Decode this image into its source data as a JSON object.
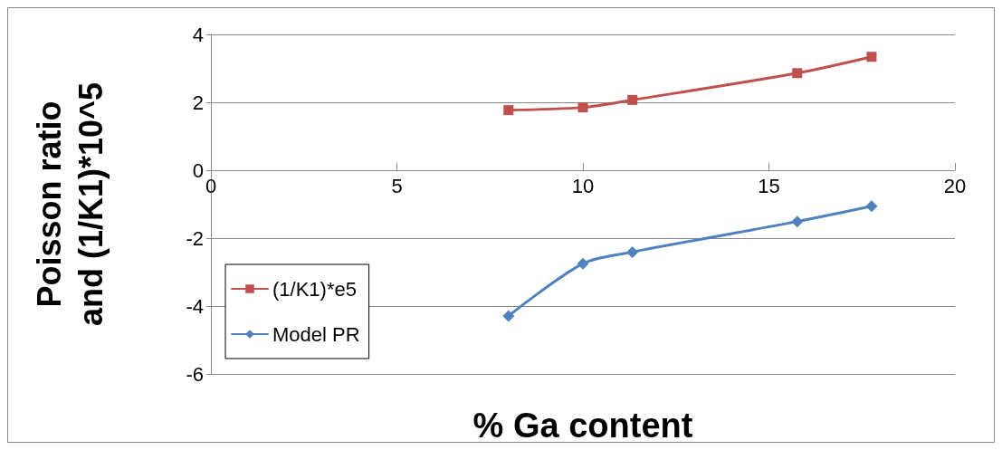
{
  "chart_data": {
    "type": "line",
    "xlabel": "% Ga content",
    "ylabel": "Poisson ratio\nand (1/K1)*10^5",
    "xlim": [
      0,
      20
    ],
    "xticks": [
      0,
      5,
      10,
      15,
      20
    ],
    "ylim": [
      -6,
      4
    ],
    "yticks": [
      -6,
      -4,
      -2,
      0,
      2,
      4
    ],
    "grid": "y",
    "legend": "bottom left",
    "line_style": "solid",
    "series": [
      {
        "name": "(1/K1)*e5",
        "color": "#c0504d",
        "marker": "square",
        "x": [
          8,
          10,
          11.33,
          15.76,
          17.76
        ],
        "values": [
          1.77,
          1.85,
          2.07,
          2.86,
          3.34
        ]
      },
      {
        "name": "Model PR",
        "color": "#4f81bd",
        "marker": "diamond",
        "x": [
          8,
          10,
          11.33,
          15.76,
          17.76
        ],
        "values": [
          -4.29,
          -2.75,
          -2.41,
          -1.51,
          -1.06
        ]
      }
    ]
  }
}
